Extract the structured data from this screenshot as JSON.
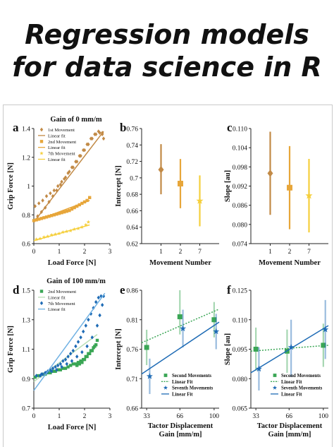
{
  "cover": {
    "title_line1": "Regression models",
    "title_line2": "for data science in R"
  },
  "colors": {
    "brown": "#c28a46",
    "orange": "#e7a63a",
    "yellow": "#f5cf3c",
    "green": "#3aa655",
    "green_light": "#b9deb4",
    "blue": "#1e6bb5",
    "blue_light": "#6fb1e3"
  },
  "chart_data": [
    {
      "panel": "a",
      "type": "scatter",
      "title": "Gain of 0 mm/m",
      "xlabel": "Load Force [N]",
      "ylabel": "Grip Force [N]",
      "xlim": [
        0,
        3
      ],
      "ylim": [
        0.6,
        1.4
      ],
      "x_ticks": [
        "0",
        "1",
        "2",
        "3"
      ],
      "y_ticks": [
        "0.6",
        "0.8",
        "1",
        "1.2",
        "1.4"
      ],
      "legend": [
        "1st Movement",
        "Linear fit",
        "2nd Movement",
        "Linear fit",
        "7th Movement",
        "Linear fit"
      ],
      "series": [
        {
          "name": "1st Movement",
          "color": "#c28a46",
          "marker": "diamond",
          "x": [
            0.05,
            0.2,
            0.35,
            0.5,
            0.65,
            0.8,
            0.95,
            1.1,
            1.25,
            1.4,
            1.55,
            1.7,
            1.85,
            2.0,
            2.15,
            2.3,
            2.45,
            2.6,
            2.7,
            2.75,
            2.7,
            2.55,
            2.4,
            2.25,
            2.1,
            1.95,
            1.8,
            1.65,
            1.5,
            1.35,
            1.2,
            1.05,
            0.9,
            0.75,
            0.6,
            0.45,
            0.3,
            0.15
          ],
          "y": [
            0.86,
            0.88,
            0.9,
            0.93,
            0.95,
            0.97,
            1.0,
            1.03,
            1.06,
            1.1,
            1.13,
            1.17,
            1.21,
            1.25,
            1.29,
            1.33,
            1.36,
            1.37,
            1.36,
            1.33,
            1.37,
            1.38,
            1.36,
            1.33,
            1.29,
            1.25,
            1.21,
            1.17,
            1.13,
            1.09,
            1.05,
            1.01,
            0.97,
            0.93,
            0.89,
            0.85,
            0.82,
            0.79
          ]
        },
        {
          "name": "Linear fit",
          "color": "#c28a46",
          "line": true,
          "x": [
            0,
            2.75
          ],
          "y": [
            0.75,
            1.38
          ]
        },
        {
          "name": "2nd Movement",
          "color": "#e7a63a",
          "marker": "square",
          "x": [
            0.0,
            0.1,
            0.2,
            0.3,
            0.4,
            0.5,
            0.6,
            0.7,
            0.8,
            0.9,
            1.0,
            1.1,
            1.2,
            1.3,
            1.4,
            1.5,
            1.6,
            1.7,
            1.8,
            1.9,
            2.0,
            2.1,
            2.2
          ],
          "y": [
            0.76,
            0.765,
            0.77,
            0.775,
            0.78,
            0.785,
            0.79,
            0.795,
            0.8,
            0.805,
            0.81,
            0.815,
            0.82,
            0.825,
            0.83,
            0.84,
            0.85,
            0.86,
            0.87,
            0.88,
            0.89,
            0.9,
            0.92
          ]
        },
        {
          "name": "Linear fit",
          "color": "#e7a63a",
          "line": true,
          "x": [
            0,
            2.2
          ],
          "y": [
            0.755,
            0.9
          ]
        },
        {
          "name": "7th Movement",
          "color": "#f5cf3c",
          "marker": "star",
          "x": [
            0.1,
            0.25,
            0.4,
            0.55,
            0.7,
            0.85,
            1.0,
            1.15,
            1.3,
            1.45,
            1.6,
            1.75,
            1.9,
            2.05,
            2.15
          ],
          "y": [
            0.63,
            0.635,
            0.645,
            0.65,
            0.66,
            0.665,
            0.67,
            0.68,
            0.685,
            0.69,
            0.7,
            0.705,
            0.715,
            0.73,
            0.75
          ]
        },
        {
          "name": "Linear fit",
          "color": "#f5cf3c",
          "line": true,
          "x": [
            0,
            2.2
          ],
          "y": [
            0.62,
            0.73
          ]
        }
      ]
    },
    {
      "panel": "b",
      "type": "scatter",
      "xlabel": "Movement Number",
      "ylabel": "Intercept [N]",
      "categories": [
        "1",
        "2",
        "7"
      ],
      "ylim": [
        0.62,
        0.76
      ],
      "y_ticks": [
        "0.62",
        "0.64",
        "0.66",
        "0.68",
        "0.7",
        "0.72",
        "0.74",
        "0.76"
      ],
      "points": [
        {
          "x": "1",
          "y": 0.71,
          "lo": 0.68,
          "hi": 0.741,
          "color": "#c28a46",
          "marker": "diamond"
        },
        {
          "x": "2",
          "y": 0.693,
          "lo": 0.663,
          "hi": 0.723,
          "color": "#e7a63a",
          "marker": "square"
        },
        {
          "x": "7",
          "y": 0.672,
          "lo": 0.641,
          "hi": 0.703,
          "color": "#f5cf3c",
          "marker": "star"
        }
      ]
    },
    {
      "panel": "c",
      "type": "scatter",
      "xlabel": "Movement Number",
      "ylabel": "Slope [au]",
      "categories": [
        "1",
        "2",
        "7"
      ],
      "ylim": [
        0.074,
        0.11
      ],
      "y_ticks": [
        "0.074",
        "0.080",
        "0.086",
        "0.092",
        "0.098",
        "0.104",
        "0.110"
      ],
      "points": [
        {
          "x": "1",
          "y": 0.096,
          "lo": 0.083,
          "hi": 0.109,
          "color": "#c28a46",
          "marker": "diamond"
        },
        {
          "x": "2",
          "y": 0.0915,
          "lo": 0.0785,
          "hi": 0.1045,
          "color": "#e7a63a",
          "marker": "square"
        },
        {
          "x": "7",
          "y": 0.089,
          "lo": 0.0775,
          "hi": 0.1005,
          "color": "#f5cf3c",
          "marker": "star"
        }
      ]
    },
    {
      "panel": "d",
      "type": "scatter",
      "title": "Gain of 100 mm/m",
      "xlabel": "Load Force [N]",
      "ylabel": "Grip Force [N]",
      "xlim": [
        0,
        3
      ],
      "ylim": [
        0.7,
        1.5
      ],
      "x_ticks": [
        "0",
        "1",
        "2",
        "3"
      ],
      "y_ticks": [
        "0.7",
        "0.9",
        "1.1",
        "1.3",
        "1.5"
      ],
      "legend": [
        "2nd Movement",
        "Linear fit",
        "7th Movement",
        "Linear fit"
      ],
      "series": [
        {
          "name": "2nd Movement",
          "color": "#3aa655",
          "marker": "square",
          "x": [
            0.05,
            0.15,
            0.25,
            0.35,
            0.45,
            0.55,
            0.65,
            0.75,
            0.85,
            0.95,
            1.05,
            1.15,
            1.25,
            1.35,
            1.45,
            1.55,
            1.65,
            1.75,
            1.85,
            1.95,
            2.05,
            2.15,
            2.25,
            2.35,
            2.45,
            2.5,
            2.4,
            2.3,
            2.2,
            2.1,
            2.0,
            1.9,
            1.8,
            1.7
          ],
          "y": [
            0.91,
            0.92,
            0.92,
            0.93,
            0.93,
            0.94,
            0.94,
            0.95,
            0.95,
            0.96,
            0.96,
            0.97,
            0.97,
            0.98,
            0.99,
            1.0,
            1.0,
            1.01,
            1.02,
            1.03,
            1.05,
            1.07,
            1.09,
            1.11,
            1.13,
            1.16,
            1.12,
            1.09,
            1.07,
            1.05,
            1.03,
            1.01,
            1.0,
            0.99
          ]
        },
        {
          "name": "Linear fit",
          "color": "#b9deb4",
          "line": true,
          "x": [
            0,
            2.5
          ],
          "y": [
            0.88,
            1.2
          ]
        },
        {
          "name": "7th Movement",
          "color": "#1e6bb5",
          "marker": "diamond",
          "x": [
            0.1,
            0.3,
            0.5,
            0.7,
            0.9,
            1.1,
            1.3,
            1.5,
            1.7,
            1.9,
            2.1,
            2.3,
            2.5,
            2.6,
            2.7,
            2.75,
            2.65,
            2.55,
            2.45,
            2.35,
            2.25,
            2.15,
            2.05,
            1.95,
            1.85,
            1.75,
            1.65,
            1.55,
            1.45,
            1.35,
            1.25,
            1.15,
            1.05,
            0.95,
            0.85,
            0.75,
            0.65,
            0.55,
            0.45,
            0.35,
            0.25
          ],
          "y": [
            0.92,
            0.93,
            0.94,
            0.95,
            0.96,
            0.98,
            1.0,
            1.02,
            1.05,
            1.08,
            1.12,
            1.18,
            1.26,
            1.33,
            1.4,
            1.46,
            1.46,
            1.45,
            1.42,
            1.38,
            1.34,
            1.3,
            1.26,
            1.22,
            1.18,
            1.15,
            1.12,
            1.09,
            1.07,
            1.05,
            1.03,
            1.02,
            1.0,
            0.99,
            0.98,
            0.97,
            0.96,
            0.95,
            0.94,
            0.93,
            0.92
          ]
        },
        {
          "name": "Linear fit",
          "color": "#6fb1e3",
          "line": true,
          "x": [
            0,
            2.8
          ],
          "y": [
            0.82,
            1.48
          ]
        }
      ]
    },
    {
      "panel": "e",
      "type": "scatter",
      "xlabel": "Tactor Displacement Gain [mm/m]",
      "ylabel": "Intercept [N]",
      "x_ticks": [
        "33",
        "66",
        "100"
      ],
      "xlim": [
        28,
        105
      ],
      "ylim": [
        0.66,
        0.86
      ],
      "y_ticks": [
        "0.66",
        "0.71",
        "0.76",
        "0.81",
        "0.86"
      ],
      "legend": [
        "Second Movements",
        "Linear Fit",
        "Seventh Movements",
        "Linear Fit"
      ],
      "series": [
        {
          "name": "Second Movements",
          "color": "#3aa655",
          "marker": "square",
          "points": [
            [
              33,
              0.763,
              0.733,
              0.793
            ],
            [
              66,
              0.815,
              0.785,
              0.86
            ],
            [
              100,
              0.81,
              0.78,
              0.84
            ]
          ]
        },
        {
          "name": "Linear Fit",
          "color": "#3aa655",
          "line": "dotted",
          "x": [
            28,
            105
          ],
          "y": [
            0.771,
            0.828
          ]
        },
        {
          "name": "Seventh Movements",
          "color": "#1e6bb5",
          "marker": "star",
          "points": [
            [
              36,
              0.714,
              0.684,
              0.744
            ],
            [
              69,
              0.795,
              0.763,
              0.827
            ],
            [
              102,
              0.79,
              0.76,
              0.82
            ]
          ]
        },
        {
          "name": "Linear Fit",
          "color": "#1e6bb5",
          "line": "solid",
          "x": [
            28,
            105
          ],
          "y": [
            0.718,
            0.806
          ]
        }
      ]
    },
    {
      "panel": "f",
      "type": "scatter",
      "xlabel": "Tactor Displacement Gain [mm/m]",
      "ylabel": "Slope [au]",
      "x_ticks": [
        "33",
        "66",
        "100"
      ],
      "xlim": [
        28,
        105
      ],
      "ylim": [
        0.065,
        0.125
      ],
      "y_ticks": [
        "0.065",
        "0.080",
        "0.095",
        "0.110",
        "0.125"
      ],
      "legend": [
        "Second Movements",
        "Linear Fit",
        "Seventh Movements",
        "Linear Fit"
      ],
      "series": [
        {
          "name": "Second Movements",
          "color": "#3aa655",
          "marker": "square",
          "points": [
            [
              33,
              0.095,
              0.084,
              0.106
            ],
            [
              64,
              0.094,
              0.083,
              0.105
            ],
            [
              100,
              0.097,
              0.086,
              0.108
            ]
          ]
        },
        {
          "name": "Linear Fit",
          "color": "#3aa655",
          "line": "dotted",
          "x": [
            28,
            105
          ],
          "y": [
            0.094,
            0.097
          ]
        },
        {
          "name": "Seventh Movements",
          "color": "#1e6bb5",
          "marker": "star",
          "points": [
            [
              36,
              0.085,
              0.074,
              0.096
            ],
            [
              68,
              0.096,
              0.081,
              0.11
            ],
            [
              102,
              0.105,
              0.09,
              0.12
            ]
          ]
        },
        {
          "name": "Linear Fit",
          "color": "#1e6bb5",
          "line": "solid",
          "x": [
            28,
            105
          ],
          "y": [
            0.083,
            0.107
          ]
        }
      ]
    }
  ]
}
